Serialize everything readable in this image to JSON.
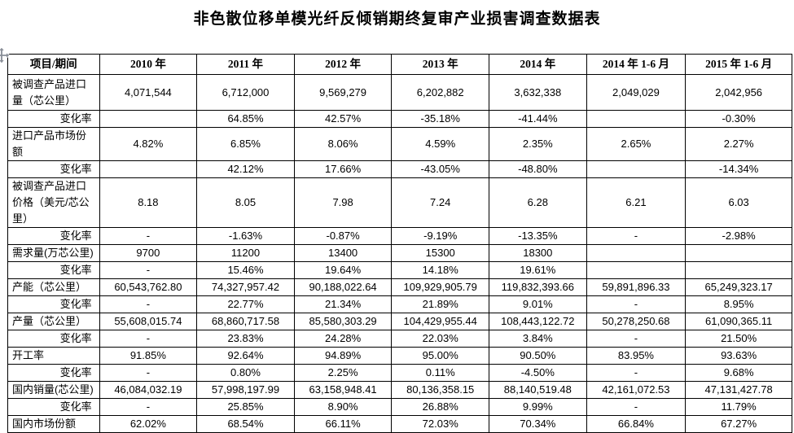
{
  "title": "非色散位移单模光纤反倾销期终复审产业损害调查数据表",
  "table": {
    "columns": [
      "项目/期间",
      "2010 年",
      "2011 年",
      "2012 年",
      "2013 年",
      "2014 年",
      "2014 年 1-6 月",
      "2015 年 1-6 月"
    ],
    "rows": [
      {
        "label": "被调查产品进口量（芯公里）",
        "label_align": "left",
        "tall": true,
        "values": [
          "4,071,544",
          "6,712,000",
          "9,569,279",
          "6,202,882",
          "3,632,338",
          "2,049,029",
          "2,042,956"
        ]
      },
      {
        "label": "变化率",
        "label_align": "right",
        "values": [
          "",
          "64.85%",
          "42.57%",
          "-35.18%",
          "-41.44%",
          "",
          "-0.30%"
        ]
      },
      {
        "label": "进口产品市场份额",
        "label_align": "left",
        "values": [
          "4.82%",
          "6.85%",
          "8.06%",
          "4.59%",
          "2.35%",
          "2.65%",
          "2.27%"
        ]
      },
      {
        "label": "变化率",
        "label_align": "right",
        "values": [
          "",
          "42.12%",
          "17.66%",
          "-43.05%",
          "-48.80%",
          "",
          "-14.34%"
        ]
      },
      {
        "label": "被调查产品进口价格（美元/芯公里）",
        "label_align": "left",
        "tall": true,
        "values": [
          "8.18",
          "8.05",
          "7.98",
          "7.24",
          "6.28",
          "6.21",
          "6.03"
        ]
      },
      {
        "label": "变化率",
        "label_align": "right",
        "values": [
          "-",
          "-1.63%",
          "-0.87%",
          "-9.19%",
          "-13.35%",
          "-",
          "-2.98%"
        ]
      },
      {
        "label": "需求量(万芯公里)",
        "label_align": "left",
        "values": [
          "9700",
          "11200",
          "13400",
          "15300",
          "18300",
          "",
          ""
        ]
      },
      {
        "label": "变化率",
        "label_align": "right",
        "values": [
          "-",
          "15.46%",
          "19.64%",
          "14.18%",
          "19.61%",
          "",
          ""
        ]
      },
      {
        "label": "产能（芯公里）",
        "label_align": "left",
        "values": [
          "60,543,762.80",
          "74,327,957.42",
          "90,188,022.64",
          "109,929,905.79",
          "119,832,393.66",
          "59,891,896.33",
          "65,249,323.17"
        ]
      },
      {
        "label": "变化率",
        "label_align": "right",
        "values": [
          "-",
          "22.77%",
          "21.34%",
          "21.89%",
          "9.01%",
          "-",
          "8.95%"
        ]
      },
      {
        "label": "产量（芯公里）",
        "label_align": "left",
        "values": [
          "55,608,015.74",
          "68,860,717.58",
          "85,580,303.29",
          "104,429,955.44",
          "108,443,122.72",
          "50,278,250.68",
          "61,090,365.11"
        ]
      },
      {
        "label": "变化率",
        "label_align": "right",
        "values": [
          "-",
          "23.83%",
          "24.28%",
          "22.03%",
          "3.84%",
          "-",
          "21.50%"
        ]
      },
      {
        "label": "开工率",
        "label_align": "left",
        "values": [
          "91.85%",
          "92.64%",
          "94.89%",
          "95.00%",
          "90.50%",
          "83.95%",
          "93.63%"
        ]
      },
      {
        "label": "变化率",
        "label_align": "right",
        "values": [
          "-",
          "0.80%",
          "2.25%",
          "0.11%",
          "-4.50%",
          "-",
          "9.68%"
        ]
      },
      {
        "label": "国内销量(芯公里)",
        "label_align": "left",
        "values": [
          "46,084,032.19",
          "57,998,197.99",
          "63,158,948.41",
          "80,136,358.15",
          "88,140,519.48",
          "42,161,072.53",
          "47,131,427.78"
        ]
      },
      {
        "label": "变化率",
        "label_align": "right",
        "values": [
          "-",
          "25.85%",
          "8.90%",
          "26.88%",
          "9.99%",
          "-",
          "11.79%"
        ]
      },
      {
        "label": "国内市场份额",
        "label_align": "left",
        "values": [
          "62.02%",
          "68.54%",
          "66.11%",
          "72.03%",
          "70.34%",
          "66.84%",
          "67.27%"
        ]
      }
    ]
  }
}
